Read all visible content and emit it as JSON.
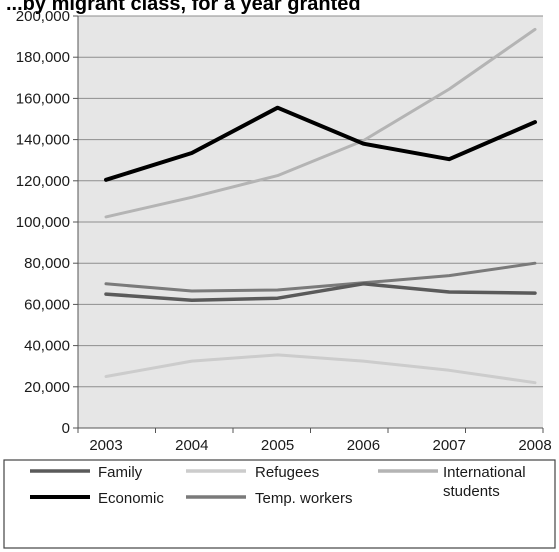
{
  "chart_data": {
    "type": "line",
    "title": "...by migrant class, for a year granted",
    "x": [
      "2003",
      "2004",
      "2005",
      "2006",
      "2007",
      "2008"
    ],
    "ylim": [
      0,
      200000
    ],
    "yticks": [
      0,
      20000,
      40000,
      60000,
      80000,
      100000,
      120000,
      140000,
      160000,
      180000,
      200000
    ],
    "ytick_labels": [
      "0",
      "20,000",
      "40,000",
      "60,000",
      "80,000",
      "100,000",
      "120,000",
      "140,000",
      "160,000",
      "180,000",
      "200,000"
    ],
    "grid": true,
    "legend_position": "bottom",
    "series": [
      {
        "name": "Family",
        "color": "#5a5a5a",
        "values": [
          65000,
          62000,
          63000,
          70000,
          66000,
          65500
        ]
      },
      {
        "name": "Economic",
        "color": "#000000",
        "values": [
          120500,
          133500,
          155500,
          138000,
          130500,
          148500
        ]
      },
      {
        "name": "Refugees",
        "color": "#cccccc",
        "values": [
          25000,
          32500,
          35500,
          32500,
          28000,
          22000
        ]
      },
      {
        "name": "Temp. workers",
        "color": "#7a7a7a",
        "values": [
          70000,
          66500,
          67000,
          70500,
          74000,
          80000
        ]
      },
      {
        "name": "International students",
        "color": "#b4b4b4",
        "values": [
          102500,
          112000,
          122500,
          139500,
          164500,
          193500
        ]
      }
    ]
  }
}
